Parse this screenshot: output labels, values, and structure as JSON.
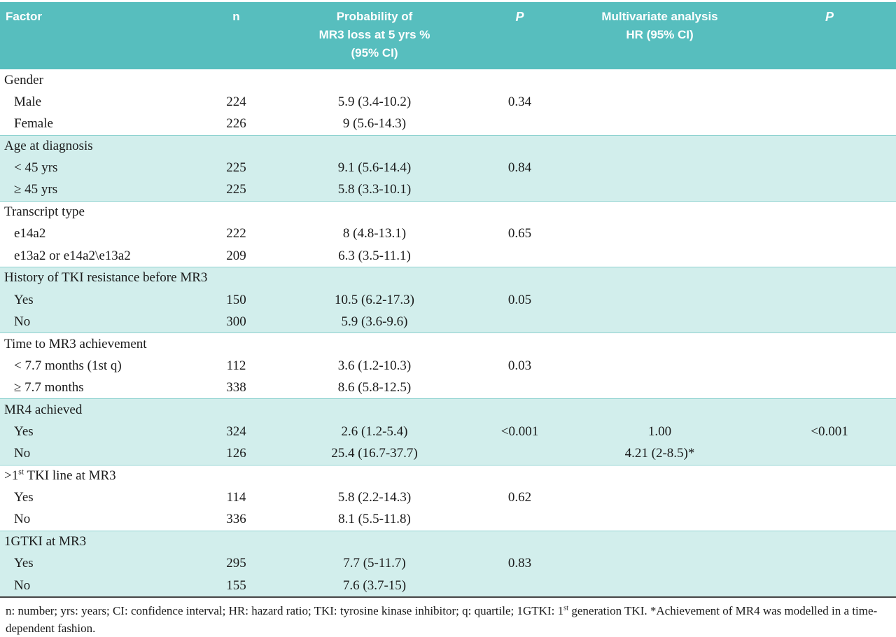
{
  "colors": {
    "header_bg": "#57bebe",
    "shaded_row_bg": "#d2eeec",
    "group_rule": "#8fd2d0",
    "bottom_rule": "#454545",
    "header_text": "#ffffff",
    "body_text": "#1b1b1b"
  },
  "table": {
    "columns": [
      {
        "id": "factor",
        "lines": [
          "Factor"
        ],
        "align": "left",
        "italic": false
      },
      {
        "id": "n",
        "lines": [
          "n"
        ],
        "align": "center",
        "italic": false
      },
      {
        "id": "probability",
        "lines": [
          "Probability of",
          "MR3 loss at 5 yrs %",
          "(95% CI)"
        ],
        "align": "center",
        "italic": false
      },
      {
        "id": "p",
        "lines": [
          "P"
        ],
        "align": "center",
        "italic": true
      },
      {
        "id": "multivariate",
        "lines": [
          "Multivariate analysis",
          "HR (95% CI)"
        ],
        "align": "center",
        "italic": false
      },
      {
        "id": "p-multivariate",
        "lines": [
          "P"
        ],
        "align": "center",
        "italic": true
      }
    ],
    "groups": [
      {
        "label": "Gender",
        "shaded": false,
        "rows": [
          {
            "factor": "Male",
            "n": "224",
            "probability": "5.9 (3.4-10.2)",
            "p": "0.34",
            "hr": "",
            "p2": ""
          },
          {
            "factor": "Female",
            "n": "226",
            "probability": "9 (5.6-14.3)",
            "p": "",
            "hr": "",
            "p2": ""
          }
        ]
      },
      {
        "label": "Age at diagnosis",
        "shaded": true,
        "rows": [
          {
            "factor": "< 45 yrs",
            "n": "225",
            "probability": "9.1 (5.6-14.4)",
            "p": "0.84",
            "hr": "",
            "p2": ""
          },
          {
            "factor": "≥ 45 yrs",
            "n": "225",
            "probability": "5.8 (3.3-10.1)",
            "p": "",
            "hr": "",
            "p2": ""
          }
        ]
      },
      {
        "label": "Transcript type",
        "shaded": false,
        "rows": [
          {
            "factor": "e14a2",
            "n": "222",
            "probability": "8 (4.8-13.1)",
            "p": "0.65",
            "hr": "",
            "p2": ""
          },
          {
            "factor": "e13a2 or e14a2\\e13a2",
            "n": "209",
            "probability": "6.3 (3.5-11.1)",
            "p": "",
            "hr": "",
            "p2": ""
          }
        ]
      },
      {
        "label": "History of TKI resistance before MR3",
        "shaded": true,
        "rows": [
          {
            "factor": "Yes",
            "n": "150",
            "probability": "10.5 (6.2-17.3)",
            "p": "0.05",
            "hr": "",
            "p2": ""
          },
          {
            "factor": "No",
            "n": "300",
            "probability": "5.9 (3.6-9.6)",
            "p": "",
            "hr": "",
            "p2": ""
          }
        ]
      },
      {
        "label": "Time to MR3 achievement",
        "shaded": false,
        "rows": [
          {
            "factor": "< 7.7 months (1st q)",
            "n": "112",
            "probability": "3.6 (1.2-10.3)",
            "p": "0.03",
            "hr": "",
            "p2": ""
          },
          {
            "factor": "≥ 7.7 months",
            "n": "338",
            "probability": "8.6 (5.8-12.5)",
            "p": "",
            "hr": "",
            "p2": ""
          }
        ]
      },
      {
        "label": "MR4 achieved",
        "shaded": true,
        "rows": [
          {
            "factor": "Yes",
            "n": "324",
            "probability": "2.6 (1.2-5.4)",
            "p": "<0.001",
            "hr": "1.00",
            "p2": "<0.001"
          },
          {
            "factor": "No",
            "n": "126",
            "probability": "25.4 (16.7-37.7)",
            "p": "",
            "hr": "4.21 (2-8.5)*",
            "p2": ""
          }
        ]
      },
      {
        "label": [
          {
            "t": ">1"
          },
          {
            "t": "st",
            "sup": true
          },
          {
            "t": " TKI line at MR3"
          }
        ],
        "shaded": false,
        "rows": [
          {
            "factor": "Yes",
            "n": "114",
            "probability": "5.8 (2.2-14.3)",
            "p": "0.62",
            "hr": "",
            "p2": ""
          },
          {
            "factor": "No",
            "n": "336",
            "probability": "8.1 (5.5-11.8)",
            "p": "",
            "hr": "",
            "p2": ""
          }
        ]
      },
      {
        "label": "1GTKI at MR3",
        "shaded": true,
        "rows": [
          {
            "factor": "Yes",
            "n": "295",
            "probability": "7.7 (5-11.7)",
            "p": "0.83",
            "hr": "",
            "p2": ""
          },
          {
            "factor": "No",
            "n": "155",
            "probability": "7.6 (3.7-15)",
            "p": "",
            "hr": "",
            "p2": ""
          }
        ]
      }
    ]
  },
  "footnote": [
    {
      "t": "n: number; yrs: years; CI: confidence interval; HR: hazard ratio; TKI: tyrosine kinase inhibitor; q: quartile; 1GTKI: 1"
    },
    {
      "t": "st",
      "sup": true
    },
    {
      "t": " generation TKI.  *Achievement of MR4 was modelled in a time-dependent fashion."
    }
  ]
}
